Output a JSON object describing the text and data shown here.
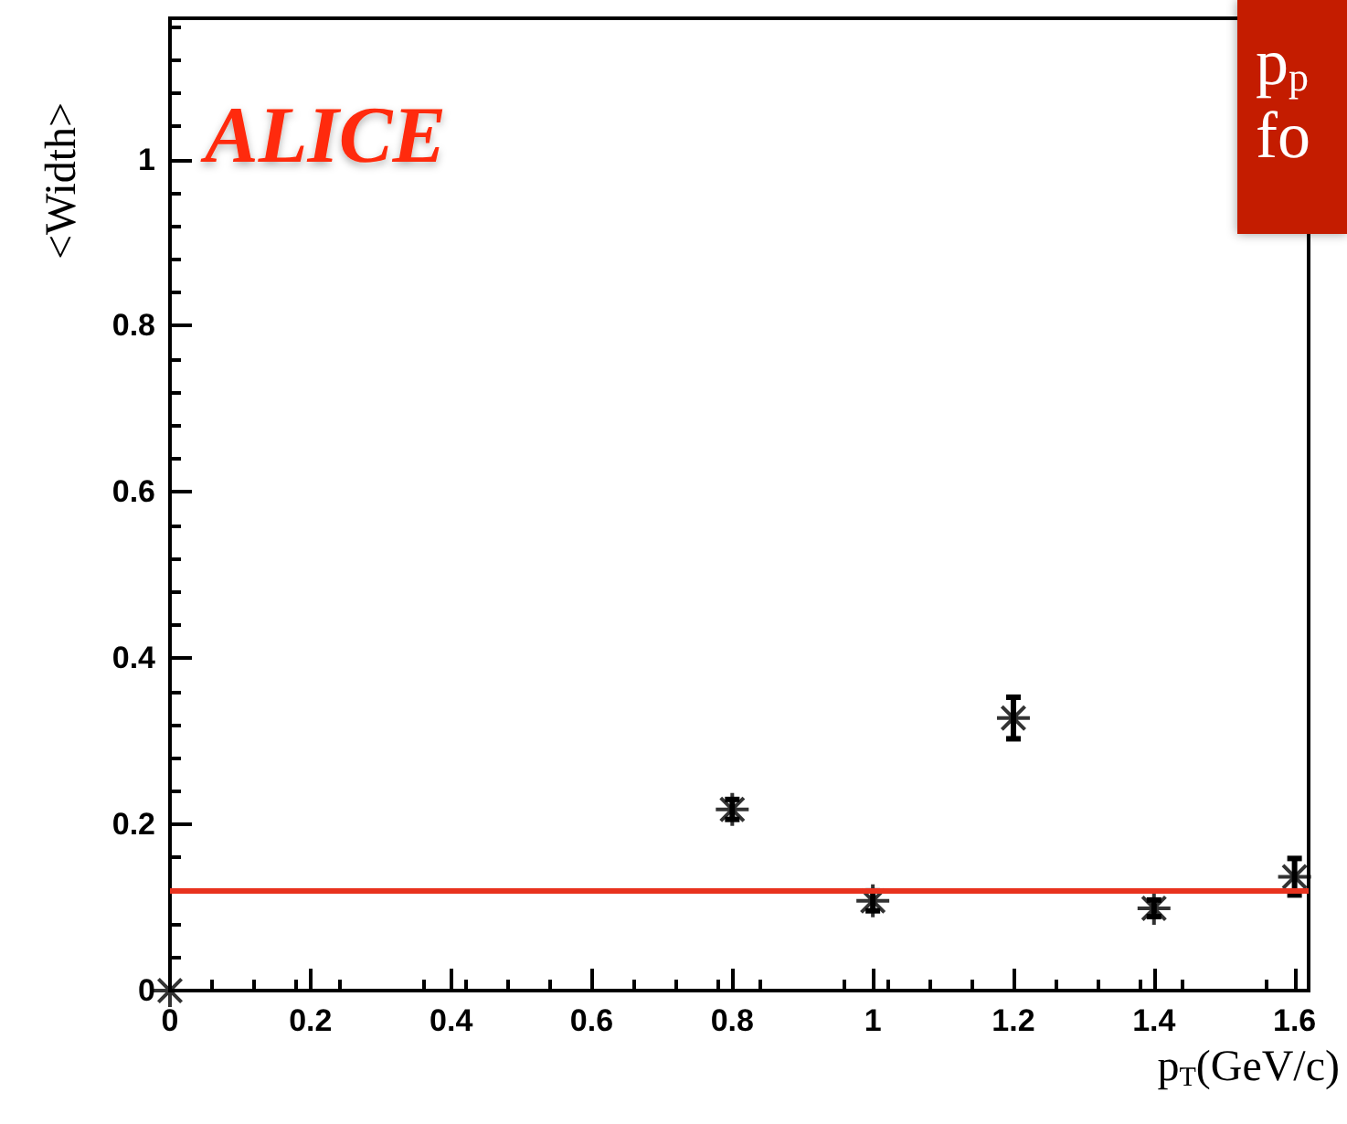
{
  "chart_data": {
    "type": "scatter",
    "xlabel": "p$_{T}$(GeV/c)",
    "ylabel": "<Width>",
    "x": [
      0,
      0.8,
      1.0,
      1.2,
      1.4,
      1.6
    ],
    "series": [
      {
        "color": "#000000",
        "values": [
          0,
          0.218,
          0.108,
          0.328,
          0.099,
          0.137
        ],
        "errors": [
          null,
          0.012,
          0.012,
          0.025,
          0.01,
          0.022
        ]
      }
    ],
    "xlim": [
      0,
      1.62
    ],
    "xticks": [
      0,
      0.2,
      0.4,
      0.6,
      0.8,
      1,
      1.2,
      1.4,
      1.6
    ],
    "ylim": [
      0,
      1.17
    ],
    "yticks": [
      0,
      0.2,
      0.4,
      0.6,
      0.8,
      1
    ],
    "ref_lines": [
      {
        "axis": "y",
        "value": 0.12,
        "color": "#e8321e",
        "line_style": "solid"
      }
    ],
    "annotations": [
      "ALICE",
      "p$_{p}$\nfo"
    ],
    "marker": "cross",
    "grid": false
  }
}
